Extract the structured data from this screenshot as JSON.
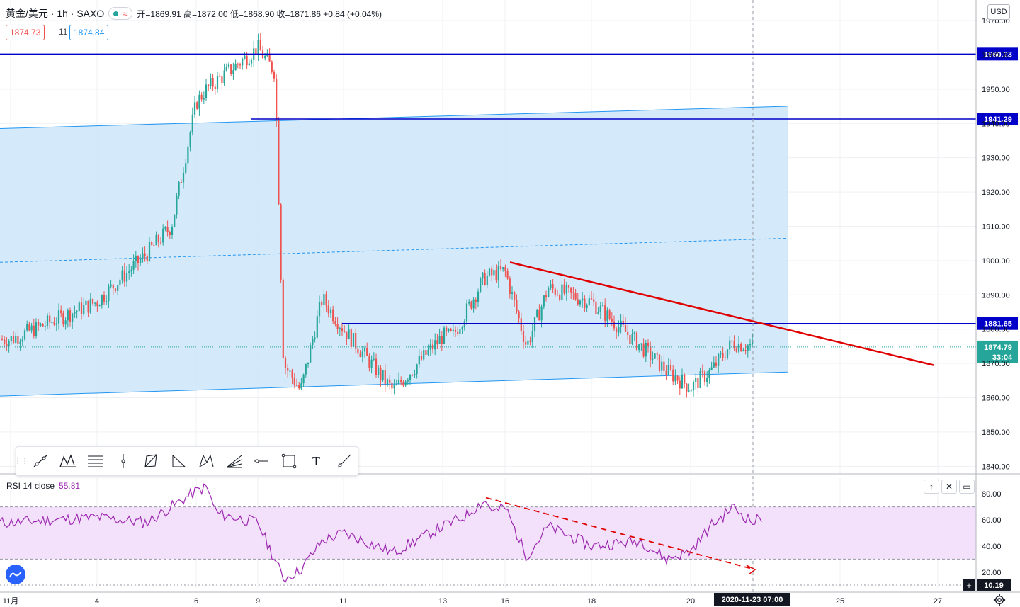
{
  "header": {
    "symbol": "黄金/美元 · 1h · SAXO",
    "wave": "≈",
    "ohlc": "开=1869.91 高=1872.00 低=1868.90 收=1871.86 +0.84 (+0.04%)"
  },
  "quote": {
    "bid": "1874.73",
    "spread": "11",
    "ask": "1874.84"
  },
  "currency": "USD",
  "colors": {
    "up": "#26a69a",
    "down": "#ef5350",
    "channel_fill": "#cfe7fa",
    "channel_line": "#2196f3",
    "hline": "#0000c8",
    "trend": "#e00000",
    "rsi": "#9c27b0",
    "rsi_band": "#f3e1fb"
  },
  "toolbar": {
    "icons": [
      "trend-line-icon",
      "pattern-icon",
      "fib-icon",
      "vertical-line-icon",
      "polygon-icon",
      "triangle-icon",
      "xabcd-icon",
      "fib-fan-icon",
      "horizontal-ray-icon",
      "rectangle-icon",
      "text-icon",
      "ray-icon"
    ],
    "text_tool_label": "T"
  },
  "rsi_panel": {
    "label": "RSI 14 close",
    "value": "55.81",
    "buttons": [
      "↑",
      "✕",
      "▭"
    ]
  },
  "footer": {
    "date_label": "2020-11-23  07:00",
    "countdown": "33:04"
  },
  "chart_data": [
    {
      "type": "candlestick",
      "title": "黄金/美元 · 1h · SAXO",
      "ylim": [
        1838,
        1976
      ],
      "x_ticks": [
        "11月",
        "4",
        "6",
        "9",
        "11",
        "13",
        "16",
        "18",
        "20",
        "23",
        "25",
        "27"
      ],
      "y_ticks": [
        1840,
        1850,
        1860,
        1870,
        1880,
        1890,
        1900,
        1910,
        1920,
        1930,
        1940,
        1950,
        1960,
        1970
      ],
      "y_tick_labels": [
        "1840.00",
        "1850.00",
        "1860.00",
        "1870.00",
        "1880.00",
        "1890.00",
        "1900.00",
        "1910.00",
        "1920.00",
        "1930.00",
        "1940.00",
        "1950.00",
        "1960.00",
        "1970.00"
      ],
      "price_path": [
        [
          "11月",
          1877
        ],
        [
          "4",
          1888
        ],
        [
          "5",
          1902
        ],
        [
          "5.5",
          1910
        ],
        [
          "6",
          1946
        ],
        [
          "6.5",
          1950
        ],
        [
          "9",
          1962
        ],
        [
          "9.4",
          1955
        ],
        [
          "9.6",
          1870
        ],
        [
          "10",
          1862
        ],
        [
          "10.5",
          1889
        ],
        [
          "11",
          1880
        ],
        [
          "12",
          1862
        ],
        [
          "13",
          1878
        ],
        [
          "13.5",
          1878
        ],
        [
          "15",
          1895
        ],
        [
          "16",
          1897
        ],
        [
          "16.5",
          1875
        ],
        [
          "17",
          1892
        ],
        [
          "18",
          1888
        ],
        [
          "19",
          1875
        ],
        [
          "19.5",
          1868
        ],
        [
          "20",
          1863
        ],
        [
          "21",
          1868
        ],
        [
          "21.5",
          1872
        ],
        [
          "22",
          1876
        ],
        [
          "23",
          1875
        ]
      ],
      "horizontal_levels": [
        {
          "value": 1960.23,
          "label": "1960.23"
        },
        {
          "value": 1941.29,
          "label": "1941.29"
        },
        {
          "value": 1881.65,
          "label": "1881.65"
        }
      ],
      "last_price": {
        "value": 1874.79,
        "label": "1874.79"
      },
      "channel": {
        "upper": [
          1938.5,
          1945
        ],
        "mid": [
          1899.5,
          1906.5
        ],
        "lower": [
          1860.5,
          1867.5
        ]
      },
      "trend_line": {
        "from": 1899.5,
        "to": 1869.5
      },
      "grid": true
    },
    {
      "type": "line",
      "title": "RSI 14 close",
      "ylim": [
        8,
        92
      ],
      "y_ticks": [
        20,
        40,
        60,
        80
      ],
      "y_tick_labels": [
        "20.00",
        "40.00",
        "60.00",
        "80.00"
      ],
      "bands": {
        "upper": 70,
        "lower": 30
      },
      "current": {
        "value": 55.81,
        "label": "55.81"
      },
      "low_marker": {
        "value": 10.19,
        "label": "10.19"
      },
      "rsi_path": [
        [
          "11月",
          58
        ],
        [
          "4",
          62
        ],
        [
          "5",
          58
        ],
        [
          "6",
          82
        ],
        [
          "6.5",
          85
        ],
        [
          "7",
          65
        ],
        [
          "9",
          58
        ],
        [
          "9.6",
          15
        ],
        [
          "10",
          22
        ],
        [
          "10.5",
          44
        ],
        [
          "11",
          50
        ],
        [
          "12",
          35
        ],
        [
          "13",
          55
        ],
        [
          "14",
          62
        ],
        [
          "15",
          75
        ],
        [
          "15.5",
          66
        ],
        [
          "16",
          70
        ],
        [
          "16.5",
          32
        ],
        [
          "17",
          55
        ],
        [
          "18",
          40
        ],
        [
          "19",
          44
        ],
        [
          "19.5",
          30
        ],
        [
          "20",
          36
        ],
        [
          "21",
          56
        ],
        [
          "21.5",
          62
        ],
        [
          "22",
          70
        ],
        [
          "23",
          58
        ],
        [
          "23.2",
          62
        ]
      ],
      "trend_line": {
        "from": 77,
        "to": 22
      },
      "grid": true
    }
  ]
}
